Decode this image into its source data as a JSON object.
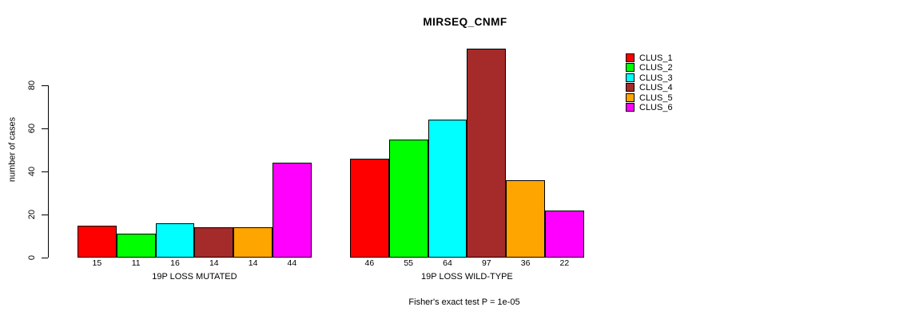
{
  "title": "MIRSEQ_CNMF",
  "footer": "Fisher's exact test P = 1e-05",
  "y_axis": {
    "label": "number of cases",
    "ticks": [
      0,
      20,
      40,
      60,
      80
    ]
  },
  "legend": {
    "items": [
      {
        "label": "CLUS_1",
        "color": "#FF0000"
      },
      {
        "label": "CLUS_2",
        "color": "#00FF00"
      },
      {
        "label": "CLUS_3",
        "color": "#00FFFF"
      },
      {
        "label": "CLUS_4",
        "color": "#A52A2A"
      },
      {
        "label": "CLUS_5",
        "color": "#FFA500"
      },
      {
        "label": "CLUS_6",
        "color": "#FF00FF"
      }
    ]
  },
  "chart_data": {
    "type": "bar",
    "title": "MIRSEQ_CNMF",
    "xlabel": "",
    "ylabel": "number of cases",
    "ylim": [
      0,
      97
    ],
    "yticks": [
      0,
      20,
      40,
      60,
      80
    ],
    "grid": false,
    "legend_position": "top-right",
    "bar_borders": "#000000",
    "categories": [
      "19P LOSS MUTATED",
      "19P LOSS WILD-TYPE"
    ],
    "series": [
      {
        "name": "CLUS_1",
        "color": "#FF0000",
        "values": [
          15,
          46
        ]
      },
      {
        "name": "CLUS_2",
        "color": "#00FF00",
        "values": [
          11,
          55
        ]
      },
      {
        "name": "CLUS_3",
        "color": "#00FFFF",
        "values": [
          16,
          64
        ]
      },
      {
        "name": "CLUS_4",
        "color": "#A52A2A",
        "values": [
          14,
          97
        ]
      },
      {
        "name": "CLUS_5",
        "color": "#FFA500",
        "values": [
          14,
          36
        ]
      },
      {
        "name": "CLUS_6",
        "color": "#FF00FF",
        "values": [
          44,
          22
        ]
      }
    ],
    "bar_value_labels": {
      "19P LOSS MUTATED": [
        15,
        11,
        16,
        14,
        14,
        44
      ],
      "19P LOSS WILD-TYPE": [
        46,
        55,
        64,
        97,
        36,
        22
      ]
    },
    "annotation": "Fisher's exact test P = 1e-05"
  }
}
